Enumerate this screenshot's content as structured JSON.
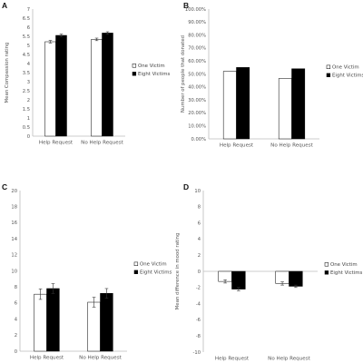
{
  "chart_data": [
    {
      "panel": "A",
      "type": "bar",
      "title": "",
      "xlabel": "",
      "ylabel": "Mean Compassion rating",
      "categories": [
        "Help Request",
        "No Help Request"
      ],
      "series": [
        {
          "name": "One Victim",
          "values": [
            5.2,
            5.33
          ],
          "errors": [
            0.07,
            0.07
          ],
          "color": "#ffffff"
        },
        {
          "name": "Eight Victims",
          "values": [
            5.55,
            5.68
          ],
          "errors": [
            0.07,
            0.07
          ],
          "color": "#000000"
        }
      ],
      "ylim": [
        0,
        7
      ],
      "yticks": [
        "0",
        "0.5",
        "1",
        "1.5",
        "2",
        "2.5",
        "3",
        "3.5",
        "4",
        "4.5",
        "5",
        "5.5",
        "6",
        "6.5",
        "7"
      ],
      "grid": false,
      "legend_position": "right"
    },
    {
      "panel": "B",
      "type": "bar",
      "title": "",
      "xlabel": "",
      "ylabel": "Number of people that donated",
      "categories": [
        "Help Request",
        "No Help Request"
      ],
      "series": [
        {
          "name": "One Victim",
          "values": [
            52,
            46.5
          ],
          "color": "#ffffff"
        },
        {
          "name": "Eight Victims",
          "values": [
            55,
            54
          ],
          "color": "#000000"
        }
      ],
      "ylim": [
        0,
        100
      ],
      "yticks": [
        "0.00%",
        "10.00%",
        "20.00%",
        "30.00%",
        "40.00%",
        "50.00%",
        "60.00%",
        "70.00%",
        "80.00%",
        "90.00%",
        "100.00%"
      ],
      "grid": false,
      "legend_position": "right"
    },
    {
      "panel": "C",
      "type": "bar",
      "title": "",
      "xlabel": "",
      "ylabel": "Donation amount in USD",
      "categories": [
        "Help Request",
        "No Help Request"
      ],
      "series": [
        {
          "name": "One Victim",
          "values": [
            7.1,
            6.1
          ],
          "errors": [
            0.65,
            0.6
          ],
          "color": "#ffffff"
        },
        {
          "name": "Eight Victims",
          "values": [
            7.8,
            7.2
          ],
          "errors": [
            0.6,
            0.6
          ],
          "color": "#000000"
        }
      ],
      "ylim": [
        0,
        20
      ],
      "yticks": [
        "0",
        "2",
        "4",
        "6",
        "8",
        "10",
        "12",
        "14",
        "16",
        "18",
        "20"
      ],
      "grid": false,
      "legend_position": "right"
    },
    {
      "panel": "D",
      "type": "bar",
      "title": "",
      "xlabel": "",
      "ylabel": "Mean difference in mood rating",
      "categories": [
        "Help Request",
        "No Help Request"
      ],
      "series": [
        {
          "name": "One Victim",
          "values": [
            -1.25,
            -1.5
          ],
          "errors": [
            0.2,
            0.2
          ],
          "color": "#ffffff"
        },
        {
          "name": "Eight Victims",
          "values": [
            -2.2,
            -1.85
          ],
          "errors": [
            0.2,
            0.15
          ],
          "color": "#000000"
        }
      ],
      "ylim": [
        -10,
        10
      ],
      "yticks": [
        "-10",
        "-8",
        "-6",
        "-4",
        "-2",
        "0",
        "2",
        "4",
        "6",
        "8",
        "10"
      ],
      "grid": false,
      "legend_position": "right"
    }
  ]
}
